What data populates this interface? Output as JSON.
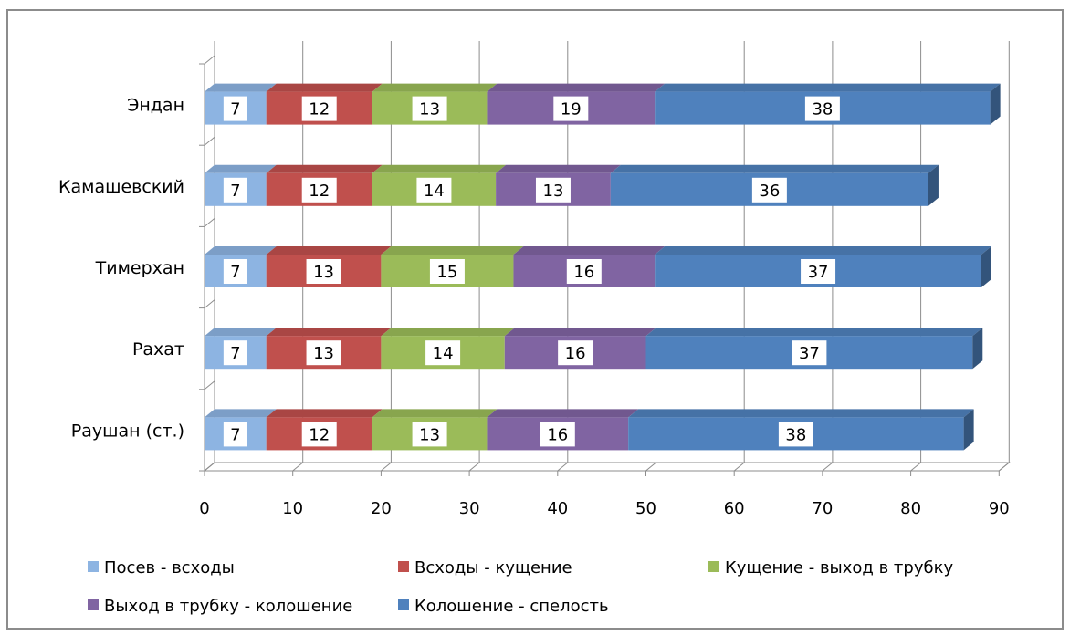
{
  "chart_data": {
    "type": "bar",
    "orientation": "horizontal",
    "stacked": true,
    "three_d": true,
    "categories": [
      "Раушан (ст.)",
      "Рахат",
      "Тимерхан",
      "Камашевский",
      "Эндан"
    ],
    "series": [
      {
        "name": "Посев - всходы",
        "values": [
          7,
          7,
          7,
          7,
          7
        ],
        "color": "#8db4e2"
      },
      {
        "name": "Всходы - кущение",
        "values": [
          12,
          13,
          13,
          12,
          12
        ],
        "color": "#c0504d"
      },
      {
        "name": "Кущение - выход в трубку",
        "values": [
          13,
          14,
          15,
          14,
          13
        ],
        "color": "#9bbb59"
      },
      {
        "name": "Выход в трубку - колошение",
        "values": [
          16,
          16,
          16,
          13,
          19
        ],
        "color": "#8064a2"
      },
      {
        "name": "Колошение - спелость",
        "values": [
          38,
          37,
          37,
          36,
          38
        ],
        "color": "#4f81bd"
      }
    ],
    "xlim": [
      0,
      90
    ],
    "xticks": [
      "0",
      "10",
      "20",
      "30",
      "40",
      "50",
      "60",
      "70",
      "80",
      "90"
    ],
    "grid": "vertical",
    "legend_position": "bottom"
  }
}
